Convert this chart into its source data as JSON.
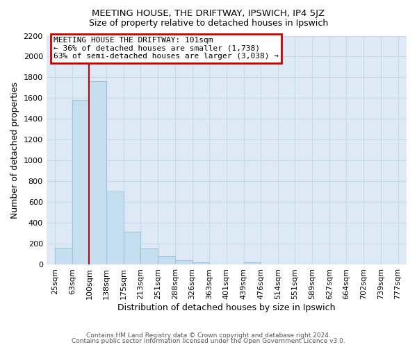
{
  "title": "MEETING HOUSE, THE DRIFTWAY, IPSWICH, IP4 5JZ",
  "subtitle": "Size of property relative to detached houses in Ipswich",
  "xlabel": "Distribution of detached houses by size in Ipswich",
  "ylabel": "Number of detached properties",
  "footer_lines": [
    "Contains HM Land Registry data © Crown copyright and database right 2024.",
    "Contains public sector information licensed under the Open Government Licence v3.0."
  ],
  "bar_edges": [
    25,
    63,
    100,
    138,
    175,
    213,
    251,
    288,
    326,
    363,
    401,
    439,
    476,
    514,
    551,
    589,
    627,
    664,
    702,
    739,
    777
  ],
  "bar_heights": [
    160,
    1580,
    1760,
    700,
    315,
    155,
    85,
    45,
    25,
    0,
    0,
    20,
    0,
    0,
    0,
    0,
    0,
    0,
    0,
    0
  ],
  "tick_labels": [
    "25sqm",
    "63sqm",
    "100sqm",
    "138sqm",
    "175sqm",
    "213sqm",
    "251sqm",
    "288sqm",
    "326sqm",
    "363sqm",
    "401sqm",
    "439sqm",
    "476sqm",
    "514sqm",
    "551sqm",
    "589sqm",
    "627sqm",
    "664sqm",
    "702sqm",
    "739sqm",
    "777sqm"
  ],
  "property_line_x": 100,
  "annotation_title": "MEETING HOUSE THE DRIFTWAY: 101sqm",
  "annotation_line1": "← 36% of detached houses are smaller (1,738)",
  "annotation_line2": "63% of semi-detached houses are larger (3,038) →",
  "bar_color": "#c5dff0",
  "bar_edge_color": "#a0c4dc",
  "vline_color": "#cc0000",
  "box_edge_color": "#cc0000",
  "ylim": [
    0,
    2200
  ],
  "yticks": [
    0,
    200,
    400,
    600,
    800,
    1000,
    1200,
    1400,
    1600,
    1800,
    2000,
    2200
  ],
  "grid_color": "#c8d8e8",
  "background_color": "#ddeaf5"
}
